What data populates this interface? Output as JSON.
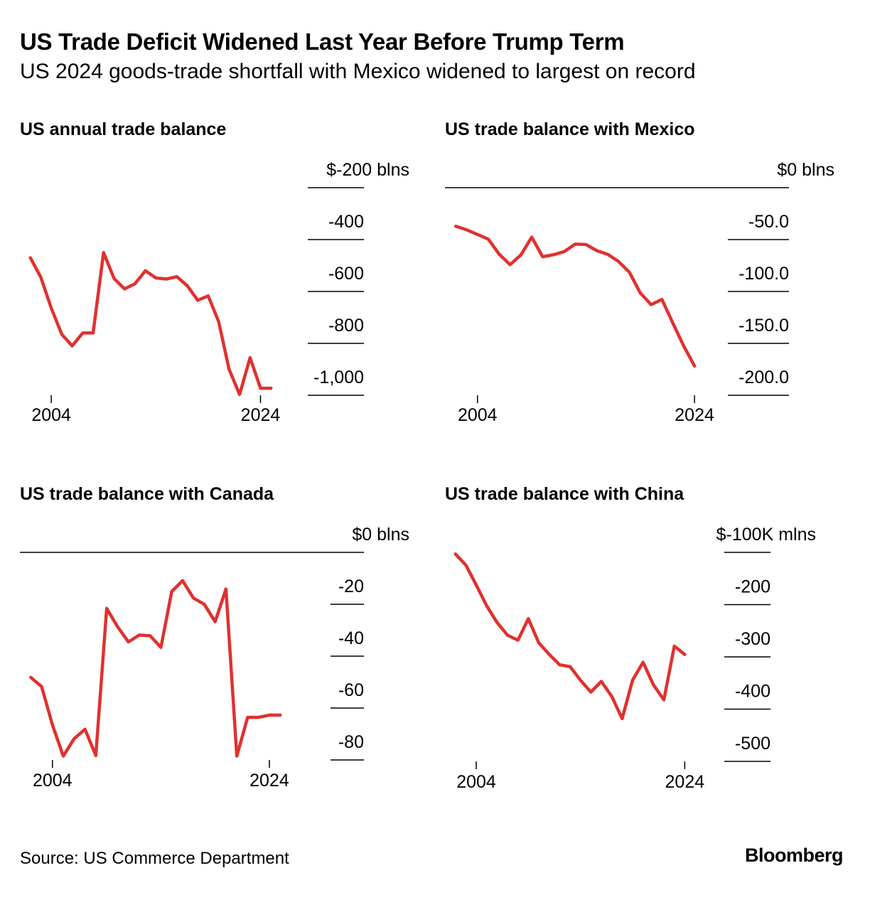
{
  "title": "US Trade Deficit Widened Last Year Before Trump Term",
  "subtitle": "US 2024 goods-trade shortfall with Mexico widened to largest on record",
  "source": "Source: US Commerce Department",
  "logo": "Bloomberg",
  "colors": {
    "line": "#e0312f",
    "text": "#000000",
    "axis": "#000000"
  },
  "chart_data": [
    {
      "id": "annual",
      "type": "line",
      "title": "US annual trade balance",
      "unit_label": "$-200 blns",
      "ylim": [
        -1000,
        -200
      ],
      "yticks": [
        -200,
        -400,
        -600,
        -800,
        -1000
      ],
      "ytick_labels": [
        "$-200 blns",
        "-400",
        "-600",
        "-800",
        "-1,000"
      ],
      "xlim": [
        2001,
        2027.5
      ],
      "xticks": [
        2004,
        2024
      ],
      "xtick_labels": [
        "2004",
        "2024"
      ],
      "x": [
        2002,
        2003,
        2004,
        2005,
        2006,
        2007,
        2008,
        2009,
        2010,
        2011,
        2012,
        2013,
        2014,
        2015,
        2016,
        2017,
        2018,
        2019,
        2020,
        2021,
        2022,
        2023,
        2024,
        2025
      ],
      "values": [
        -470,
        -545,
        -665,
        -765,
        -810,
        -760,
        -760,
        -450,
        -550,
        -590,
        -570,
        -520,
        -548,
        -552,
        -543,
        -578,
        -634,
        -617,
        -716,
        -900,
        -997,
        -855,
        -973,
        -973
      ]
    },
    {
      "id": "mexico",
      "type": "line",
      "title": "US trade balance with Mexico",
      "unit_label": "$0 blns",
      "ylim": [
        -200,
        0
      ],
      "yticks": [
        0,
        -50,
        -100,
        -150,
        -200
      ],
      "ytick_labels": [
        "$0 blns",
        "-50.0",
        "-100.0",
        "-150.0",
        "-200.0"
      ],
      "xlim": [
        2001,
        2025.5
      ],
      "xticks": [
        2004,
        2024
      ],
      "xtick_labels": [
        "2004",
        "2024"
      ],
      "x": [
        2002,
        2003,
        2004,
        2005,
        2006,
        2007,
        2008,
        2009,
        2010,
        2011,
        2012,
        2013,
        2014,
        2015,
        2016,
        2017,
        2018,
        2019,
        2020,
        2021,
        2022,
        2023,
        2024
      ],
      "values": [
        -37.1,
        -40.6,
        -45.1,
        -49.7,
        -64.1,
        -74.2,
        -64.7,
        -47.7,
        -66.5,
        -64.6,
        -61.6,
        -54.4,
        -54.8,
        -60.7,
        -64.2,
        -71.1,
        -81.5,
        -101.4,
        -112.7,
        -107.7,
        -130.4,
        -152.4,
        -171.8
      ]
    },
    {
      "id": "canada",
      "type": "line",
      "title": "US trade balance with Canada",
      "unit_label": "$0 blns",
      "ylim": [
        -80,
        0
      ],
      "yticks": [
        0,
        -20,
        -40,
        -60,
        -80
      ],
      "ytick_labels": [
        "$0 blns",
        "-20",
        "-40",
        "-60",
        "-80"
      ],
      "xlim": [
        2001,
        2028
      ],
      "xticks": [
        2004,
        2024
      ],
      "xtick_labels": [
        "2004",
        "2024"
      ],
      "x": [
        2002,
        2003,
        2004,
        2005,
        2006,
        2007,
        2008,
        2009,
        2010,
        2011,
        2012,
        2013,
        2014,
        2015,
        2016,
        2017,
        2018,
        2019,
        2020,
        2021,
        2022,
        2023,
        2024,
        2025
      ],
      "values": [
        -48.2,
        -51.7,
        -66.5,
        -78.5,
        -71.8,
        -68.2,
        -78.3,
        -21.6,
        -28.6,
        -34.5,
        -31.9,
        -32.1,
        -36.6,
        -15.1,
        -10.9,
        -17.6,
        -20.0,
        -26.7,
        -14.1,
        -78.5,
        -63.6,
        -63.6,
        -62.7,
        -62.7
      ]
    },
    {
      "id": "china",
      "type": "line",
      "title": "US trade balance with China",
      "unit_label": "$-100K mlns",
      "ylim": [
        -500,
        -100
      ],
      "yticks": [
        -100,
        -200,
        -300,
        -400,
        -500
      ],
      "ytick_labels": [
        "$-100K mlns",
        "-200",
        "-300",
        "-400",
        "-500"
      ],
      "xlim": [
        2001,
        2026.5
      ],
      "xticks": [
        2004,
        2024
      ],
      "xtick_labels": [
        "2004",
        "2024"
      ],
      "x": [
        2002,
        2003,
        2004,
        2005,
        2006,
        2007,
        2008,
        2009,
        2010,
        2011,
        2012,
        2013,
        2014,
        2015,
        2016,
        2017,
        2018,
        2019,
        2020,
        2021,
        2022,
        2023,
        2024
      ],
      "values": [
        -103.1,
        -124.1,
        -162.3,
        -202.3,
        -234.1,
        -258.5,
        -268.0,
        -226.9,
        -273.1,
        -295.2,
        -315.1,
        -318.7,
        -344.8,
        -367.3,
        -347.0,
        -375.6,
        -418.2,
        -344.3,
        -310.3,
        -353.5,
        -382.3,
        -279.4,
        -295.4
      ]
    }
  ]
}
